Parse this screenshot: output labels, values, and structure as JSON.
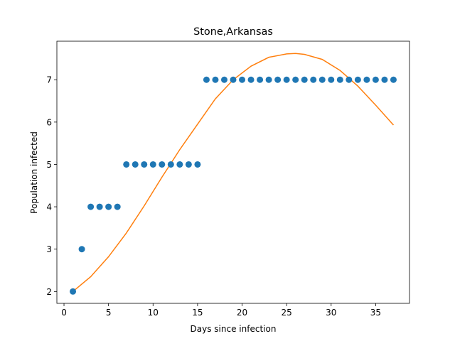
{
  "chart_data": {
    "type": "scatter",
    "title": "Stone,Arkansas",
    "xlabel": "Days since infection",
    "ylabel": "Population infected",
    "xlim": [
      -0.8,
      38.8
    ],
    "ylim": [
      1.72,
      7.91
    ],
    "xticks": [
      0,
      5,
      10,
      15,
      20,
      25,
      30,
      35
    ],
    "yticks": [
      2,
      3,
      4,
      5,
      6,
      7
    ],
    "grid": false,
    "colors": {
      "points": "#1f77b4",
      "fit": "#ff7f0e"
    },
    "series": [
      {
        "type": "scatter",
        "x": [
          1,
          2,
          3,
          4,
          5,
          6,
          7,
          8,
          9,
          10,
          11,
          12,
          13,
          14,
          15,
          16,
          17,
          18,
          19,
          20,
          21,
          22,
          23,
          24,
          25,
          26,
          27,
          28,
          29,
          30,
          31,
          32,
          33,
          34,
          35,
          36,
          37
        ],
        "y": [
          2,
          3,
          4,
          4,
          4,
          4,
          5,
          5,
          5,
          5,
          5,
          5,
          5,
          5,
          5,
          7,
          7,
          7,
          7,
          7,
          7,
          7,
          7,
          7,
          7,
          7,
          7,
          7,
          7,
          7,
          7,
          7,
          7,
          7,
          7,
          7,
          7
        ]
      },
      {
        "type": "line",
        "x": [
          1,
          3,
          5,
          7,
          9,
          11,
          13,
          15,
          17,
          19,
          21,
          23,
          25,
          26,
          27,
          29,
          31,
          33,
          35,
          37
        ],
        "y": [
          2.0,
          2.35,
          2.82,
          3.38,
          4.02,
          4.7,
          5.35,
          5.95,
          6.55,
          7.0,
          7.32,
          7.53,
          7.61,
          7.62,
          7.6,
          7.48,
          7.22,
          6.85,
          6.4,
          5.93
        ]
      }
    ]
  }
}
